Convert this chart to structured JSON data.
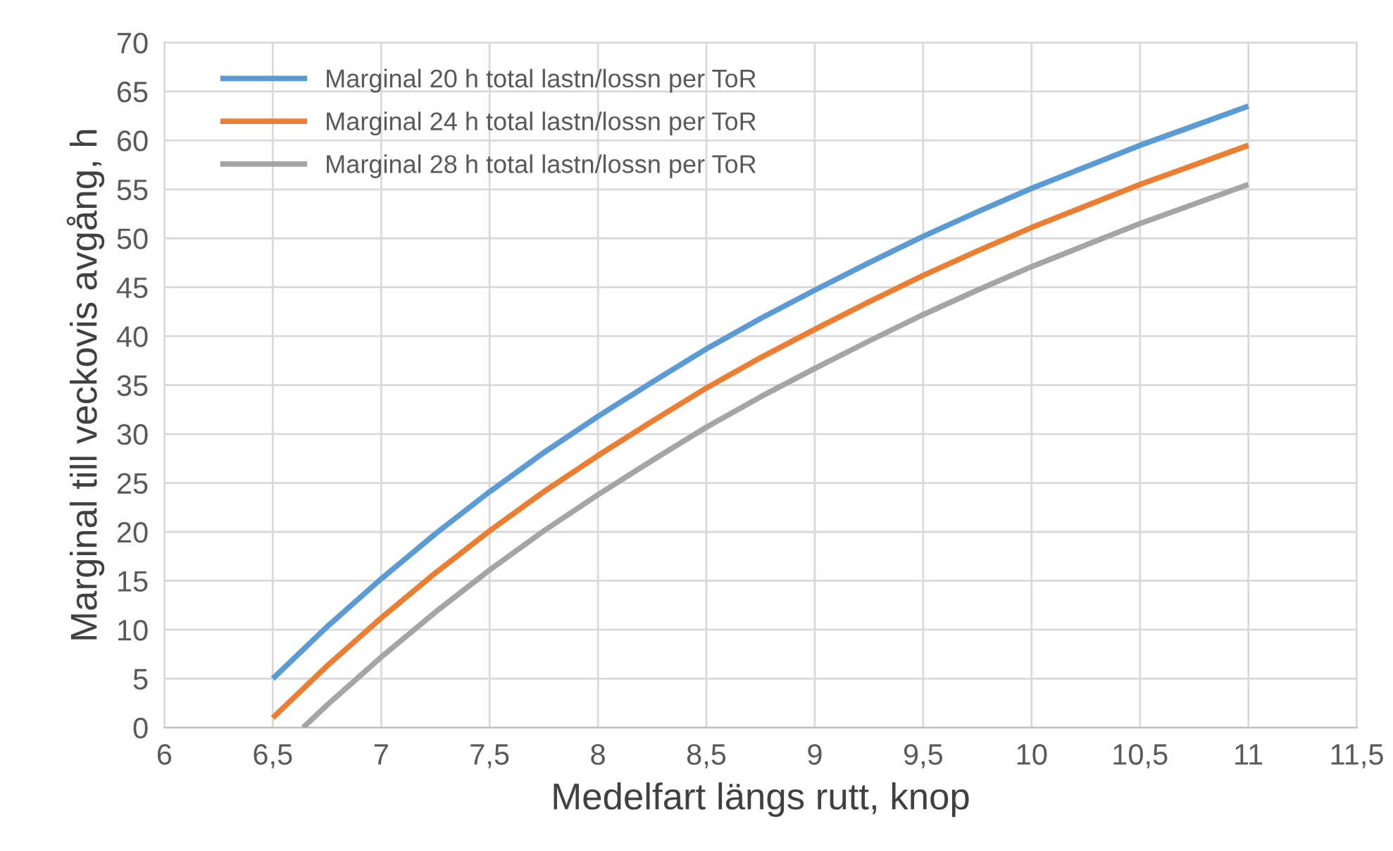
{
  "chart_data": {
    "type": "line",
    "xlabel": "Medelfart längs rutt, knop",
    "ylabel": "Marginal till veckovis avgång, h",
    "xlim": [
      6,
      11.5
    ],
    "ylim": [
      0,
      70
    ],
    "xticks": [
      6,
      {
        "value": 6.5,
        "label": "6,5"
      },
      7,
      {
        "value": 7.5,
        "label": "7,5"
      },
      8,
      {
        "value": 8.5,
        "label": "8,5"
      },
      9,
      {
        "value": 9.5,
        "label": "9,5"
      },
      10,
      {
        "value": 10.5,
        "label": "10,5"
      },
      11,
      {
        "value": 11.5,
        "label": "11,5"
      }
    ],
    "yticks": [
      0,
      5,
      10,
      15,
      20,
      25,
      30,
      35,
      40,
      45,
      50,
      55,
      60,
      65,
      70
    ],
    "grid": true,
    "legend": "top left",
    "marker": "none",
    "line_style": "solid",
    "series": [
      {
        "name": "Marginal 20 h total lastn/lossn per ToR",
        "color": "#5b9bd5",
        "x": [
          6.5,
          6.75,
          7,
          7.25,
          7.5,
          7.75,
          8,
          8.25,
          8.5,
          8.75,
          9,
          9.25,
          9.5,
          9.75,
          10,
          10.25,
          10.5,
          10.75,
          11
        ],
        "values": [
          5.0,
          10.3,
          15.2,
          19.8,
          24.1,
          28.1,
          31.8,
          35.3,
          38.7,
          41.8,
          44.7,
          47.5,
          50.2,
          52.7,
          55.1,
          57.3,
          59.5,
          61.5,
          63.5
        ]
      },
      {
        "name": "Marginal 24 h total lastn/lossn per ToR",
        "color": "#ed7d31",
        "x": [
          6.5,
          6.75,
          7,
          7.25,
          7.5,
          7.75,
          8,
          8.25,
          8.5,
          8.75,
          9,
          9.25,
          9.5,
          9.75,
          10,
          10.25,
          10.5,
          10.75,
          11
        ],
        "values": [
          1.0,
          6.3,
          11.2,
          15.8,
          20.1,
          24.1,
          27.8,
          31.3,
          34.7,
          37.8,
          40.7,
          43.5,
          46.2,
          48.7,
          51.1,
          53.3,
          55.5,
          57.5,
          59.5
        ]
      },
      {
        "name": "Marginal 28 h total lastn/lossn per ToR",
        "color": "#a5a5a5",
        "x": [
          6.64,
          6.75,
          7,
          7.25,
          7.5,
          7.75,
          8,
          8.25,
          8.5,
          8.75,
          9,
          9.25,
          9.5,
          9.75,
          10,
          10.25,
          10.5,
          10.75,
          11
        ],
        "values": [
          0.0,
          2.3,
          7.2,
          11.8,
          16.1,
          20.1,
          23.8,
          27.3,
          30.7,
          33.8,
          36.7,
          39.5,
          42.2,
          44.7,
          47.1,
          49.3,
          51.5,
          53.5,
          55.5
        ]
      }
    ]
  }
}
